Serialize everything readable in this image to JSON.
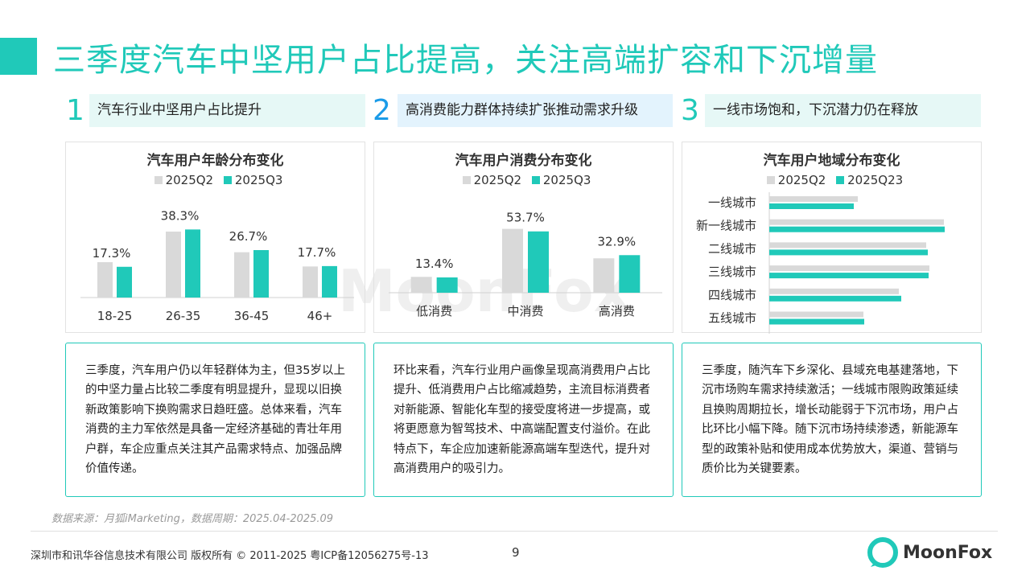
{
  "title": "三季度汽车中坚用户占比提高，关注高端扩容和下沉增量",
  "sections": [
    {
      "num": "1",
      "heading": "汽车行业中坚用户占比提升",
      "body": "三季度，汽车用户仍以年轻群体为主，但35岁以上的中坚力量占比较二季度有明显提升，显现以旧换新政策影响下换购需求日趋旺盛。总体来看，汽车消费的主力军依然是具备一定经济基础的青壮年用户群，车企应重点关注其产品需求特点、加强品牌价值传递。"
    },
    {
      "num": "2",
      "heading": "高消费能力群体持续扩张推动需求升级",
      "body": "环比来看，汽车行业用户画像呈现高消费用户占比提升、低消费用户占比缩减趋势，主流目标消费者对新能源、智能化车型的接受度将进一步提高，或将更愿意为智驾技术、中高端配置支付溢价。在此特点下，车企应加速新能源高端车型迭代，提升对高消费用户的吸引力。"
    },
    {
      "num": "3",
      "heading": "一线市场饱和，下沉潜力仍在释放",
      "body": "三季度，随汽车下乡深化、县域充电基建落地，下沉市场购车需求持续激活；一线城市限购政策延续且换购周期拉长，增长动能弱于下沉市场，用户占比环比小幅下降。随下沉市场持续渗透，新能源车型的政策补贴和使用成本优势放大，渠道、营销与质价比为关键要素。"
    }
  ],
  "colors": {
    "teal": "#20c9b9",
    "gray": "#d9d9d9",
    "blue": "#1a9be8"
  },
  "chart_data": [
    {
      "type": "bar",
      "title": "汽车用户年龄分布变化",
      "categories": [
        "18-25",
        "26-35",
        "36-45",
        "46+"
      ],
      "series": [
        {
          "name": "2025Q2",
          "values": [
            19.9,
            37.1,
            25.5,
            17.5
          ]
        },
        {
          "name": "2025Q3",
          "values": [
            17.3,
            38.3,
            26.7,
            17.7
          ]
        }
      ],
      "labels": [
        "17.3%",
        "38.3%",
        "26.7%",
        "17.7%"
      ],
      "ylim": [
        0,
        45
      ]
    },
    {
      "type": "bar",
      "title": "汽车用户消费分布变化",
      "categories": [
        "低消费",
        "中消费",
        "高消费"
      ],
      "series": [
        {
          "name": "2025Q2",
          "values": [
            13.9,
            55.9,
            30.1
          ]
        },
        {
          "name": "2025Q3",
          "values": [
            13.4,
            53.7,
            32.9
          ]
        }
      ],
      "labels": [
        "13.4%",
        "53.7%",
        "32.9%"
      ],
      "ylim": [
        0,
        64
      ]
    },
    {
      "type": "bar",
      "orientation": "horizontal",
      "title": "汽车用户地域分布变化",
      "categories": [
        "一线城市",
        "新一线城市",
        "二线城市",
        "三线城市",
        "四线城市",
        "五线城市"
      ],
      "series": [
        {
          "name": "2025Q2",
          "values": [
            11.0,
            21.7,
            19.5,
            19.9,
            16.1,
            11.7
          ]
        },
        {
          "name": "2025Q23",
          "values": [
            10.5,
            21.8,
            19.7,
            19.8,
            16.4,
            11.8
          ]
        }
      ],
      "xlim": [
        0,
        22
      ]
    }
  ],
  "source": "数据来源：月狐iMarketing，数据周期：2025.04-2025.09",
  "footer": {
    "copyright": "深圳市和讯华谷信息技术有限公司 版权所有 © 2011-2025 粤ICP备12056275号-13",
    "page": "9",
    "logo": "MoonFox"
  }
}
